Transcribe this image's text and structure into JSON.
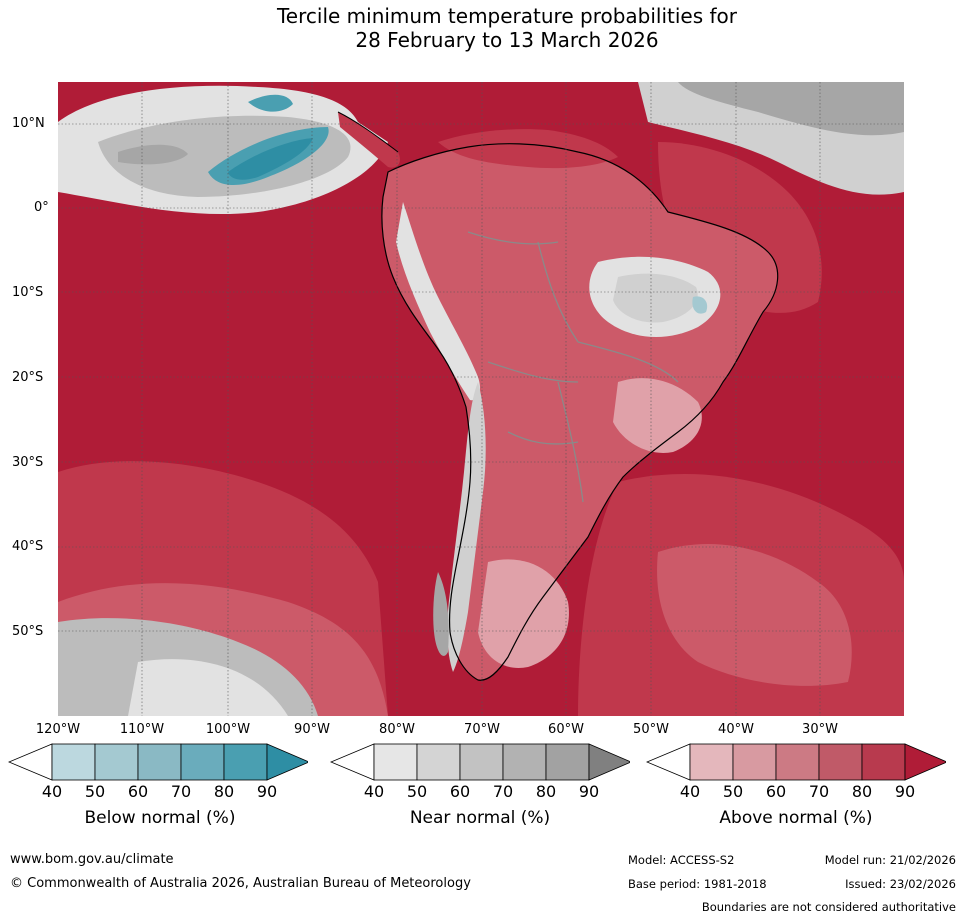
{
  "title": {
    "line1": "Tercile minimum temperature probabilities for",
    "line2": "28 February to 13 March 2026"
  },
  "map": {
    "lat_labels": [
      "10°N",
      "0°",
      "10°S",
      "20°S",
      "30°S",
      "40°S",
      "50°S"
    ],
    "lon_labels": [
      "120°W",
      "110°W",
      "100°W",
      "90°W",
      "80°W",
      "70°W",
      "60°W",
      "50°W",
      "40°W",
      "30°W"
    ],
    "colors": {
      "above90": "#b01c37",
      "above80": "#c0384c",
      "above70": "#cc5a69",
      "above60": "#d67b86",
      "above50": "#e0a1a9",
      "above40": "#ecc9cd",
      "near50": "#e2e2e2",
      "near60": "#d0d0d0",
      "near70": "#bcbcbc",
      "near80": "#a6a6a6",
      "below70": "#6aacbc",
      "below80": "#4a9fb1",
      "below90": "#2e8ea4",
      "coast": "#000000",
      "border": "#8a8a8a"
    }
  },
  "legends": [
    {
      "title": "Below normal (%)",
      "ticks": [
        "40",
        "50",
        "60",
        "70",
        "80",
        "90"
      ],
      "colors": [
        "#ffffff",
        "#bcd8df",
        "#a4c9d1",
        "#8ab9c4",
        "#6aacbc",
        "#4a9fb1",
        "#2e8ea4"
      ]
    },
    {
      "title": "Near normal (%)",
      "ticks": [
        "40",
        "50",
        "60",
        "70",
        "80",
        "90"
      ],
      "colors": [
        "#ffffff",
        "#e6e6e6",
        "#d4d4d4",
        "#c2c2c2",
        "#b2b2b2",
        "#a2a2a2",
        "#808080"
      ]
    },
    {
      "title": "Above normal (%)",
      "ticks": [
        "40",
        "50",
        "60",
        "70",
        "80",
        "90"
      ],
      "colors": [
        "#ffffff",
        "#e4b7bc",
        "#d89aa1",
        "#cc7a84",
        "#c05a68",
        "#b83a4e",
        "#b01c37"
      ]
    }
  ],
  "footer": {
    "url": "www.bom.gov.au/climate",
    "copyright": "© Commonwealth of Australia 2026, Australian Bureau of Meteorology",
    "model": "Model: ACCESS-S2",
    "model_run": "Model run: 21/02/2026",
    "base_period": "Base period: 1981-2018",
    "issued": "Issued: 23/02/2026",
    "disclaimer": "Boundaries are not considered authoritative"
  }
}
